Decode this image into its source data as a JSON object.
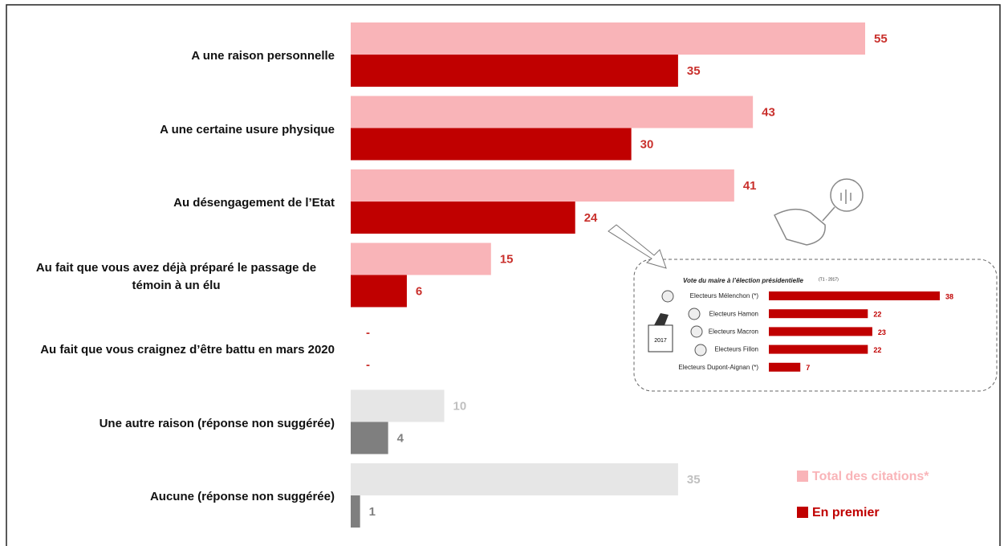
{
  "chart_data": [
    {
      "type": "bar",
      "orientation": "horizontal",
      "categories": [
        "A une raison personnelle",
        "A une certaine usure physique",
        "Au désengagement de l’Etat",
        "Au fait que vous avez déjà préparé le passage de témoin à un élu",
        "Au fait que vous craignez d’être battu en mars 2020",
        "Une autre raison (réponse non suggérée)",
        "Aucune (réponse non suggérée)"
      ],
      "series": [
        {
          "name": "Total des citations*",
          "color": "#f9b4b8",
          "values": [
            55,
            43,
            41,
            15,
            null,
            10,
            35
          ],
          "value_labels": [
            "55",
            "43",
            "41",
            "15",
            "-",
            "10",
            "35"
          ],
          "colors": [
            "#f9b4b8",
            "#f9b4b8",
            "#f9b4b8",
            "#f9b4b8",
            "#f9b4b8",
            "#e6e6e6",
            "#e6e6e6"
          ],
          "label_colors": [
            "#c9302c",
            "#c9302c",
            "#c9302c",
            "#c9302c",
            "#c9302c",
            "#c0c0c0",
            "#c0c0c0"
          ]
        },
        {
          "name": "En premier",
          "color": "#c00000",
          "values": [
            35,
            30,
            24,
            6,
            null,
            4,
            1
          ],
          "value_labels": [
            "35",
            "30",
            "24",
            "6",
            "-",
            "4",
            "1"
          ],
          "colors": [
            "#c00000",
            "#c00000",
            "#c00000",
            "#c00000",
            "#c00000",
            "#7f7f7f",
            "#7f7f7f"
          ],
          "label_colors": [
            "#c9302c",
            "#c9302c",
            "#c9302c",
            "#c9302c",
            "#c9302c",
            "#7f7f7f",
            "#7f7f7f"
          ]
        }
      ],
      "xlim": [
        0,
        55
      ],
      "legend": "bottom right"
    },
    {
      "type": "bar",
      "orientation": "horizontal",
      "title": "Vote du maire à l’élection présidentielle",
      "subtitle": "(T1 - 2017)",
      "categories": [
        "Electeurs Mélenchon (*)",
        "Electeurs Hamon",
        "Electeurs Macron",
        "Electeurs Fillon",
        "Electeurs Dupont-Aignan (*)"
      ],
      "values": [
        38,
        22,
        23,
        22,
        7
      ],
      "color": "#c00000",
      "xlim": [
        0,
        38
      ]
    }
  ],
  "inset_icon_label": "2017"
}
